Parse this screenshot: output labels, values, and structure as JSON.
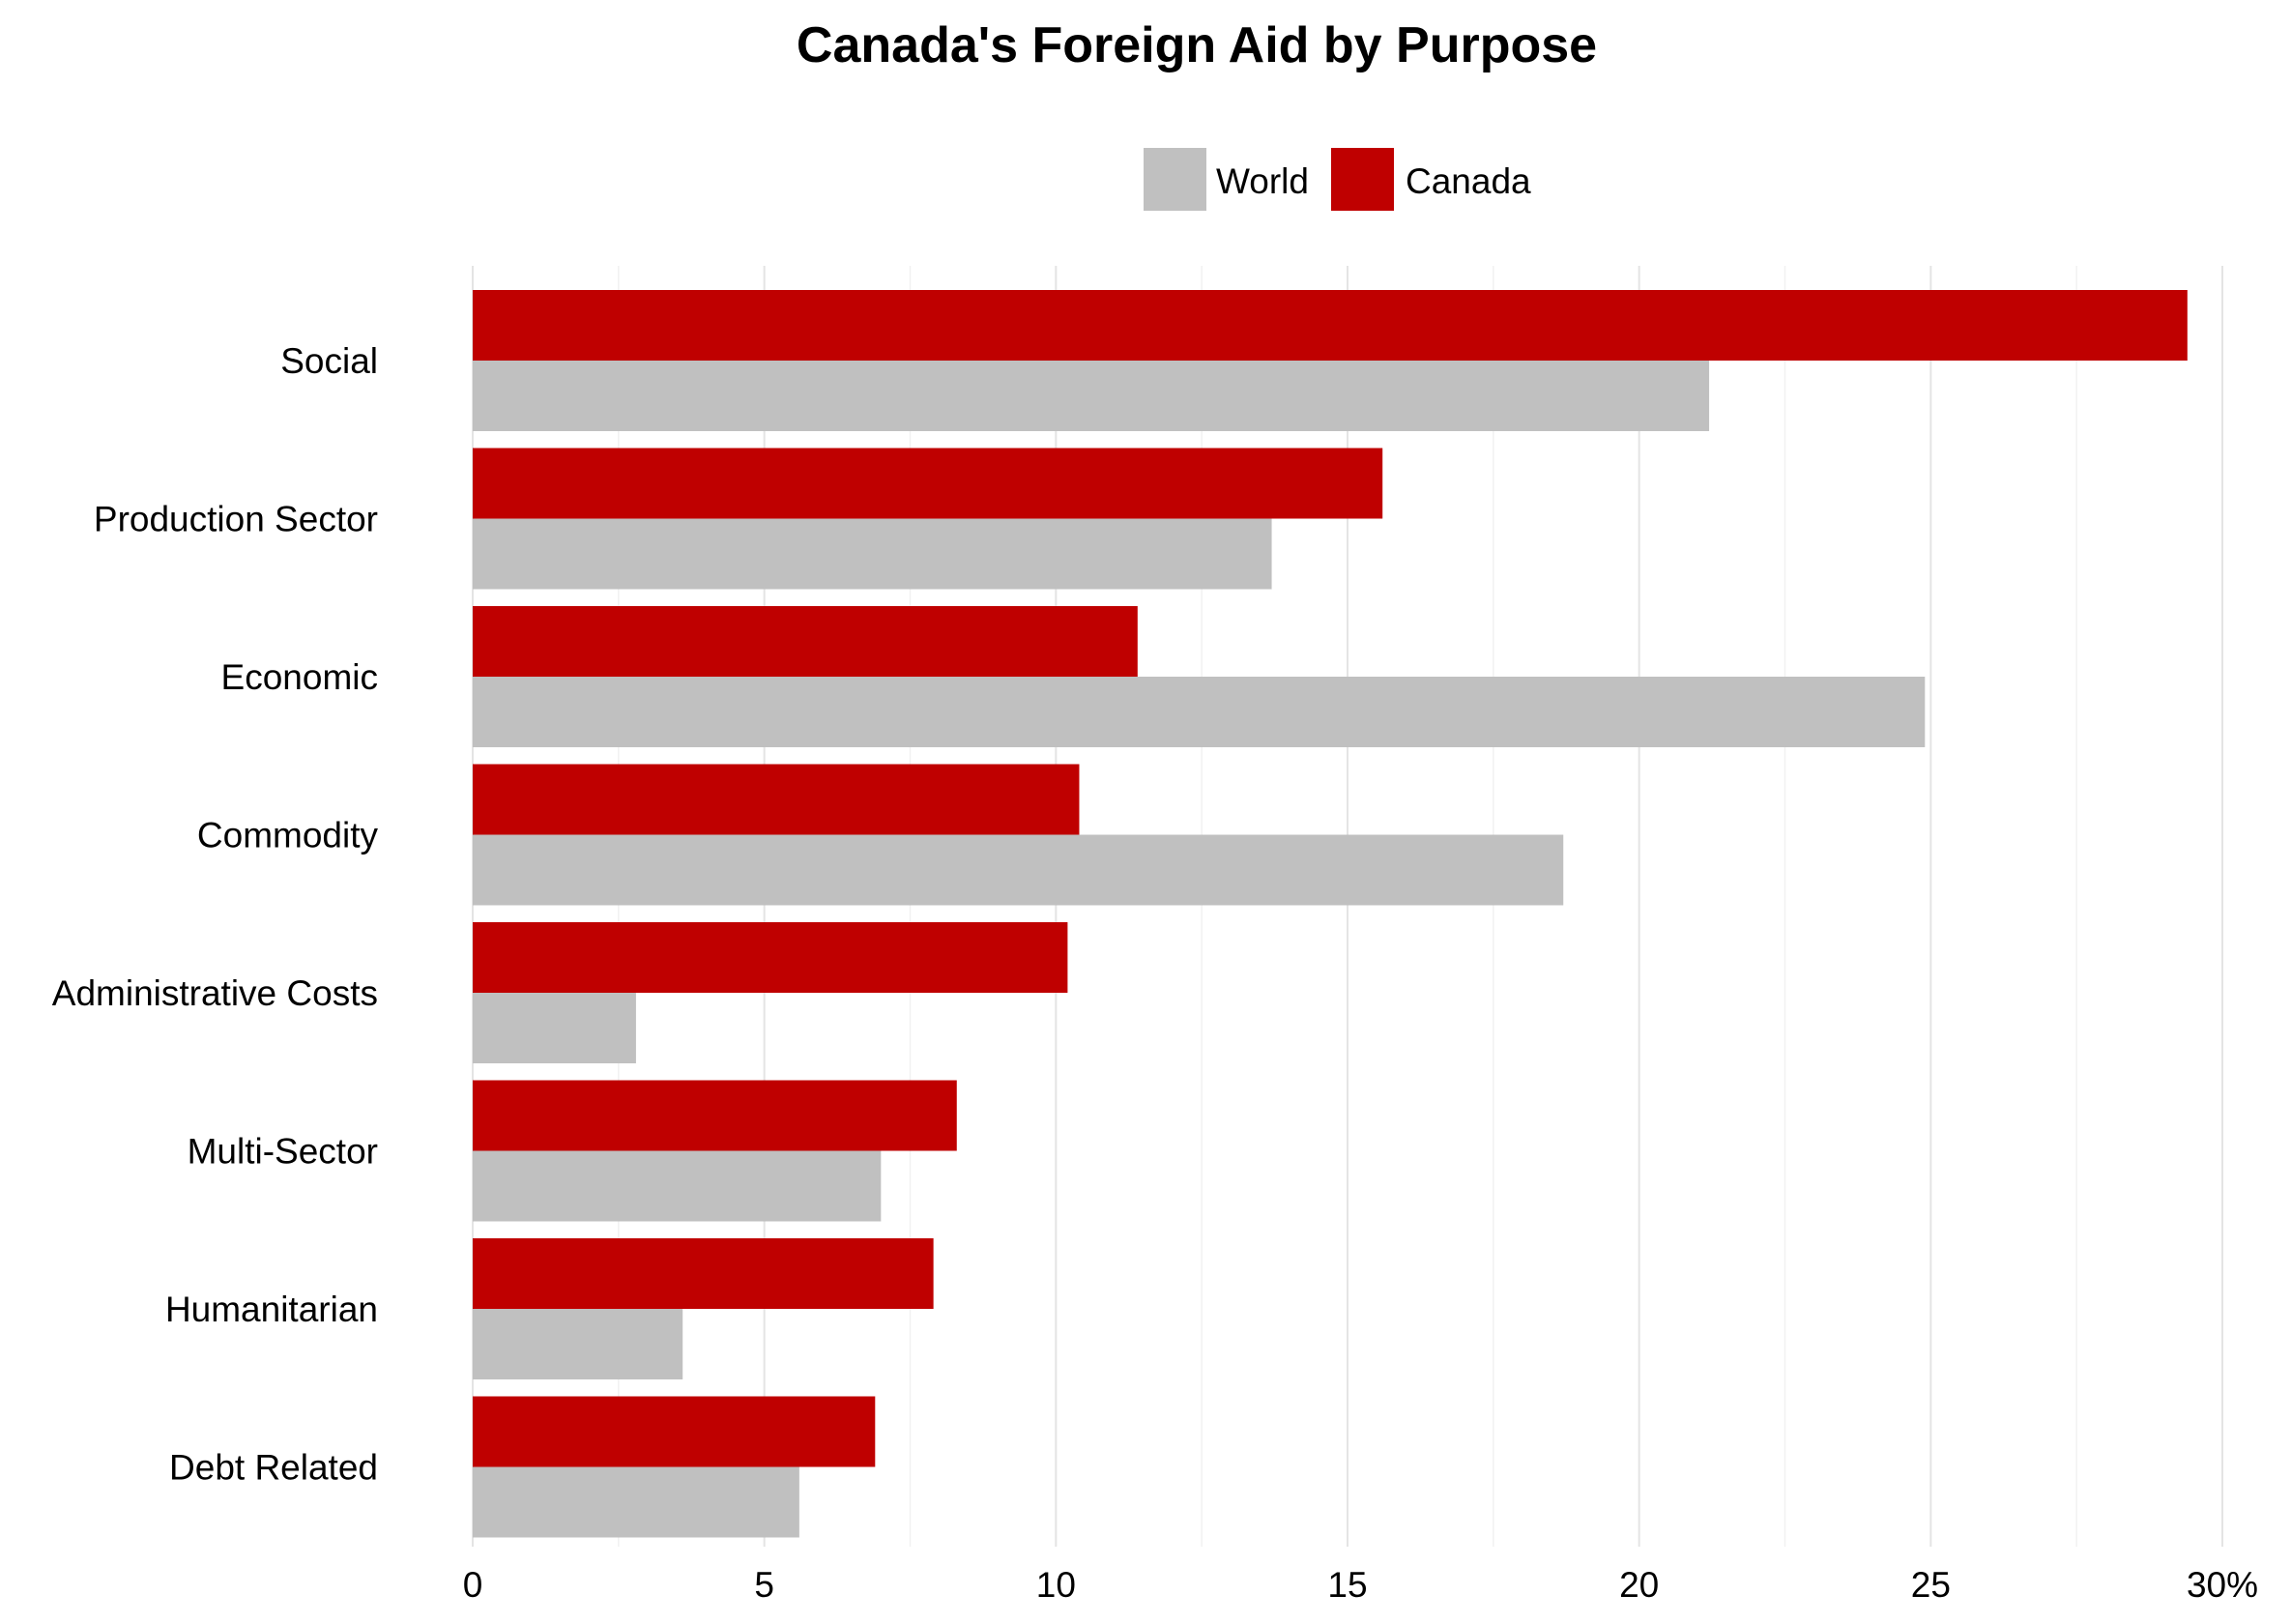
{
  "chart_data": {
    "type": "bar",
    "orientation": "horizontal",
    "title": "Canada's Foreign Aid by Purpose",
    "xlabel": "",
    "ylabel": "",
    "xlim": [
      0,
      30
    ],
    "x_ticks": [
      0,
      5,
      10,
      15,
      20,
      25,
      30
    ],
    "x_tick_labels": [
      "0",
      "5",
      "10",
      "15",
      "20",
      "25",
      "30%"
    ],
    "grid": true,
    "legend_position": "top-center",
    "categories": [
      "Social",
      "Production Sector",
      "Economic",
      "Commodity",
      "Administrative Costs",
      "Multi-Sector",
      "Humanitarian",
      "Debt Related"
    ],
    "series": [
      {
        "name": "World",
        "color": "#c0c0c0",
        "values": [
          21.2,
          13.7,
          24.9,
          18.7,
          2.8,
          7.0,
          3.6,
          5.6
        ]
      },
      {
        "name": "Canada",
        "color": "#bf0000",
        "values": [
          29.4,
          15.6,
          11.4,
          10.4,
          10.2,
          8.3,
          7.9,
          6.9
        ]
      }
    ]
  }
}
